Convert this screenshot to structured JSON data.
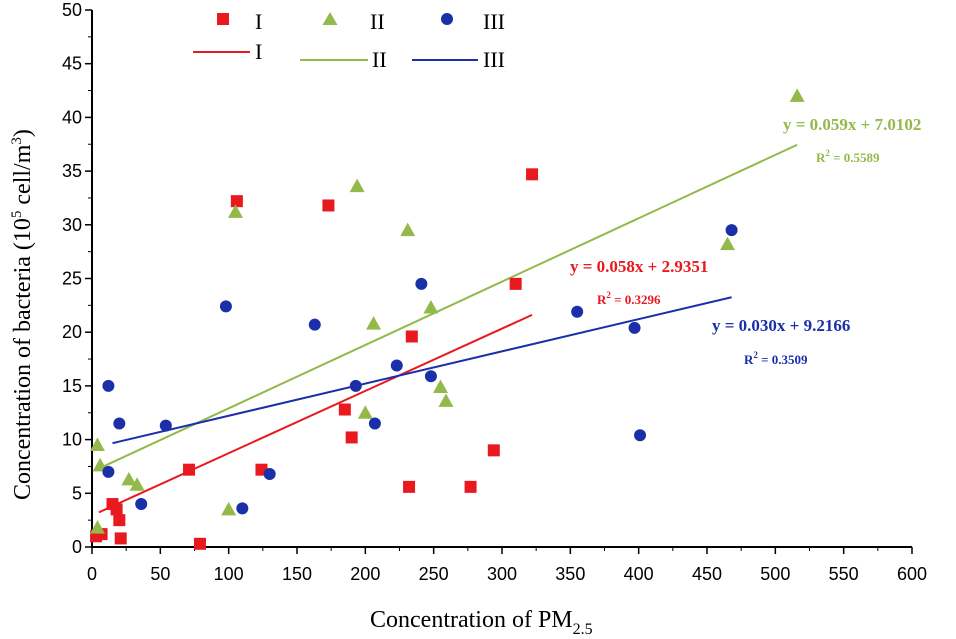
{
  "chart_data": {
    "type": "scatter",
    "title": "",
    "xlabel": "Concentration of PM",
    "xlabel_sub": "2.5",
    "ylabel_prefix": "Concentration of bacteria (10",
    "ylabel_sup": "5",
    "ylabel_mid": " cell/m",
    "ylabel_sup2": "3",
    "ylabel_suffix": ")",
    "xlim": [
      0,
      600
    ],
    "ylim": [
      0,
      50
    ],
    "xticks": [
      0,
      50,
      100,
      150,
      200,
      250,
      300,
      350,
      400,
      450,
      500,
      550,
      600
    ],
    "yticks": [
      0,
      5,
      10,
      15,
      20,
      25,
      30,
      35,
      40,
      45,
      50
    ],
    "legend": {
      "marker_labels": [
        "I",
        "II",
        "III"
      ],
      "line_labels": [
        "I",
        "II",
        "III"
      ]
    },
    "series": [
      {
        "name": "I",
        "marker": "square",
        "color": "#e8191f",
        "points": [
          [
            3,
            1
          ],
          [
            7,
            1.2
          ],
          [
            15,
            4
          ],
          [
            18,
            3.5
          ],
          [
            20,
            2.5
          ],
          [
            21,
            0.8
          ],
          [
            71,
            7.2
          ],
          [
            79,
            0.3
          ],
          [
            106,
            32.2
          ],
          [
            124,
            7.2
          ],
          [
            173,
            31.8
          ],
          [
            185,
            12.8
          ],
          [
            190,
            10.2
          ],
          [
            232,
            5.6
          ],
          [
            234,
            19.6
          ],
          [
            277,
            5.6
          ],
          [
            294,
            9
          ],
          [
            310,
            24.5
          ],
          [
            322,
            34.7
          ]
        ],
        "fit": {
          "slope": 0.058,
          "intercept": 2.9351,
          "x_range": [
            5,
            322
          ]
        },
        "equation": "y = 0.058x + 2.9351",
        "r2_label": "R",
        "r2_sup": "2",
        "r2_value": " = 0.3296"
      },
      {
        "name": "II",
        "marker": "triangle",
        "color": "#93b94a",
        "points": [
          [
            4,
            9.5
          ],
          [
            6,
            7.6
          ],
          [
            4,
            1.8
          ],
          [
            27,
            6.3
          ],
          [
            33,
            5.8
          ],
          [
            100,
            3.5
          ],
          [
            105,
            31.2
          ],
          [
            194,
            33.6
          ],
          [
            200,
            12.5
          ],
          [
            206,
            20.8
          ],
          [
            231,
            29.5
          ],
          [
            248,
            22.3
          ],
          [
            255,
            14.9
          ],
          [
            259,
            13.6
          ],
          [
            465,
            28.2
          ],
          [
            516,
            42
          ]
        ],
        "fit": {
          "slope": 0.059,
          "intercept": 7.0102,
          "x_range": [
            5,
            516
          ]
        },
        "equation": "y = 0.059x + 7.0102",
        "r2_label": "R",
        "r2_sup": "2",
        "r2_value": " = 0.5589"
      },
      {
        "name": "III",
        "marker": "circle",
        "color": "#1a2fa8",
        "points": [
          [
            12,
            15
          ],
          [
            12,
            7
          ],
          [
            20,
            11.5
          ],
          [
            36,
            4
          ],
          [
            54,
            11.3
          ],
          [
            98,
            22.4
          ],
          [
            110,
            3.6
          ],
          [
            130,
            6.8
          ],
          [
            163,
            20.7
          ],
          [
            193,
            15
          ],
          [
            207,
            11.5
          ],
          [
            223,
            16.9
          ],
          [
            241,
            24.5
          ],
          [
            248,
            15.9
          ],
          [
            355,
            21.9
          ],
          [
            397,
            20.4
          ],
          [
            401,
            10.4
          ],
          [
            468,
            29.5
          ]
        ],
        "fit": {
          "slope": 0.03,
          "intercept": 9.2166,
          "x_range": [
            15,
            468
          ]
        },
        "equation": "y = 0.030x + 9.2166",
        "r2_label": "R",
        "r2_sup": "2",
        "r2_value": " = 0.3509"
      }
    ]
  }
}
